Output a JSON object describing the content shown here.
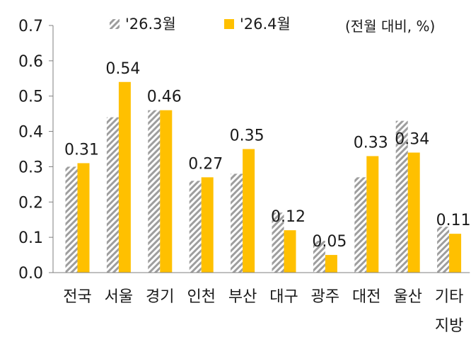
{
  "chart_data": {
    "type": "bar",
    "unit_note": "(전월 대비, %)",
    "categories": [
      "전국",
      "서울",
      "경기",
      "인천",
      "부산",
      "대구",
      "광주",
      "대전",
      "울산",
      "기타\n지방"
    ],
    "series": [
      {
        "name": "'26.3월",
        "values": [
          0.3,
          0.44,
          0.46,
          0.26,
          0.28,
          0.17,
          0.09,
          0.27,
          0.43,
          0.13
        ],
        "color": "#9e9e9e",
        "pattern": "diagonal-hatch"
      },
      {
        "name": "'26.4월",
        "values": [
          0.31,
          0.54,
          0.46,
          0.27,
          0.35,
          0.12,
          0.05,
          0.33,
          0.34,
          0.11
        ],
        "color": "#ffc000",
        "pattern": "solid"
      }
    ],
    "data_labels": [
      "0.31",
      "0.54",
      "0.46",
      "0.27",
      "0.35",
      "0.12",
      "0.05",
      "0.33",
      "0.34",
      "0.11"
    ],
    "y_ticks": [
      "0.0",
      "0.1",
      "0.2",
      "0.3",
      "0.4",
      "0.5",
      "0.6",
      "0.7"
    ],
    "ylim": [
      0,
      0.7
    ],
    "grid": false,
    "legend_position": "top"
  }
}
